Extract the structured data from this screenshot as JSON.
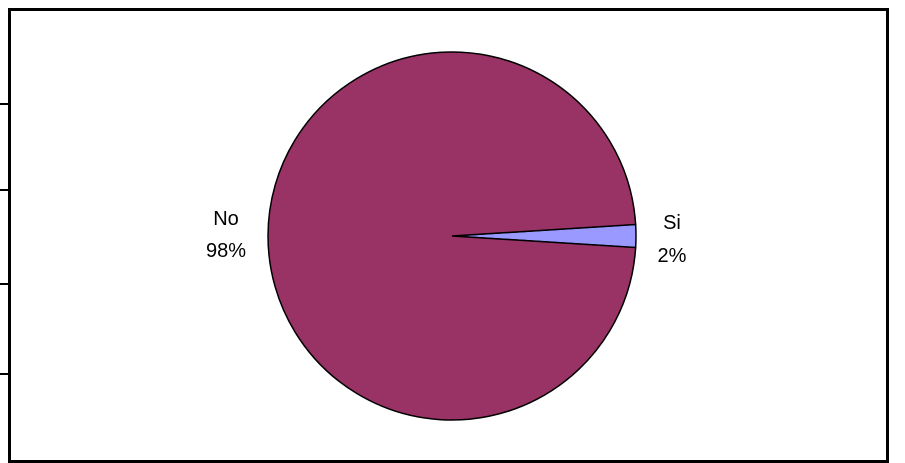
{
  "chart_data": {
    "type": "pie",
    "title": "",
    "slices": [
      {
        "label": "No",
        "percent_label": "98%",
        "value": 98,
        "color": "#993366"
      },
      {
        "label": "Si",
        "percent_label": "2%",
        "value": 2,
        "color": "#9999ff"
      }
    ],
    "start_angle_deg": 0,
    "direction": "counterclockwise",
    "legend": "none",
    "slice_border_color": "#000000"
  }
}
